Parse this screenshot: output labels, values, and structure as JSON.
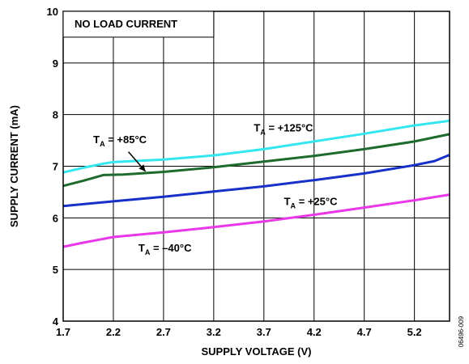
{
  "chart_data": {
    "type": "line",
    "xlabel": "SUPPLY VOLTAGE (V)",
    "ylabel": "SUPPLY CURRENT (mA)",
    "xlim": [
      1.7,
      5.55
    ],
    "ylim": [
      4,
      10
    ],
    "x_ticks": [
      "1.7",
      "2.2",
      "2.7",
      "3.2",
      "3.7",
      "4.2",
      "4.7",
      "5.2"
    ],
    "y_ticks": [
      "4",
      "5",
      "6",
      "7",
      "8",
      "9",
      "10"
    ],
    "grid": true,
    "annotation_box": "NO LOAD CURRENT",
    "figure_id": "06496-009",
    "series": [
      {
        "name": "TA = +125°C",
        "label_main": "T",
        "label_sub": "A",
        "label_rest": " = +125°C",
        "color": "#33e6f0",
        "points": [
          [
            1.7,
            6.88
          ],
          [
            1.9,
            6.97
          ],
          [
            2.1,
            7.05
          ],
          [
            2.2,
            7.08
          ],
          [
            2.7,
            7.13
          ],
          [
            3.2,
            7.21
          ],
          [
            3.7,
            7.33
          ],
          [
            4.2,
            7.48
          ],
          [
            4.7,
            7.63
          ],
          [
            5.2,
            7.79
          ],
          [
            5.55,
            7.88
          ]
        ]
      },
      {
        "name": "TA = +85°C",
        "label_main": "T",
        "label_sub": "A",
        "label_rest": " = +85°C",
        "color": "#1f6b2d",
        "points": [
          [
            1.7,
            6.62
          ],
          [
            1.9,
            6.72
          ],
          [
            2.1,
            6.83
          ],
          [
            2.3,
            6.84
          ],
          [
            2.7,
            6.89
          ],
          [
            3.2,
            6.98
          ],
          [
            3.7,
            7.09
          ],
          [
            4.2,
            7.2
          ],
          [
            4.7,
            7.33
          ],
          [
            5.2,
            7.48
          ],
          [
            5.55,
            7.62
          ]
        ]
      },
      {
        "name": "TA = +25°C",
        "label_main": "T",
        "label_sub": "A",
        "label_rest": " = +25°C",
        "color": "#1630c8",
        "points": [
          [
            1.7,
            6.23
          ],
          [
            2.2,
            6.32
          ],
          [
            2.7,
            6.41
          ],
          [
            3.2,
            6.51
          ],
          [
            3.7,
            6.61
          ],
          [
            4.2,
            6.73
          ],
          [
            4.7,
            6.86
          ],
          [
            5.2,
            7.02
          ],
          [
            5.4,
            7.1
          ],
          [
            5.55,
            7.22
          ]
        ]
      },
      {
        "name": "TA = –40°C",
        "label_main": "T",
        "label_sub": "A",
        "label_rest": " = –40°C",
        "color": "#e838e8",
        "points": [
          [
            1.7,
            5.44
          ],
          [
            1.9,
            5.52
          ],
          [
            2.2,
            5.63
          ],
          [
            2.7,
            5.72
          ],
          [
            3.2,
            5.82
          ],
          [
            3.7,
            5.93
          ],
          [
            4.2,
            6.06
          ],
          [
            4.7,
            6.2
          ],
          [
            5.2,
            6.34
          ],
          [
            5.55,
            6.45
          ]
        ]
      }
    ]
  }
}
